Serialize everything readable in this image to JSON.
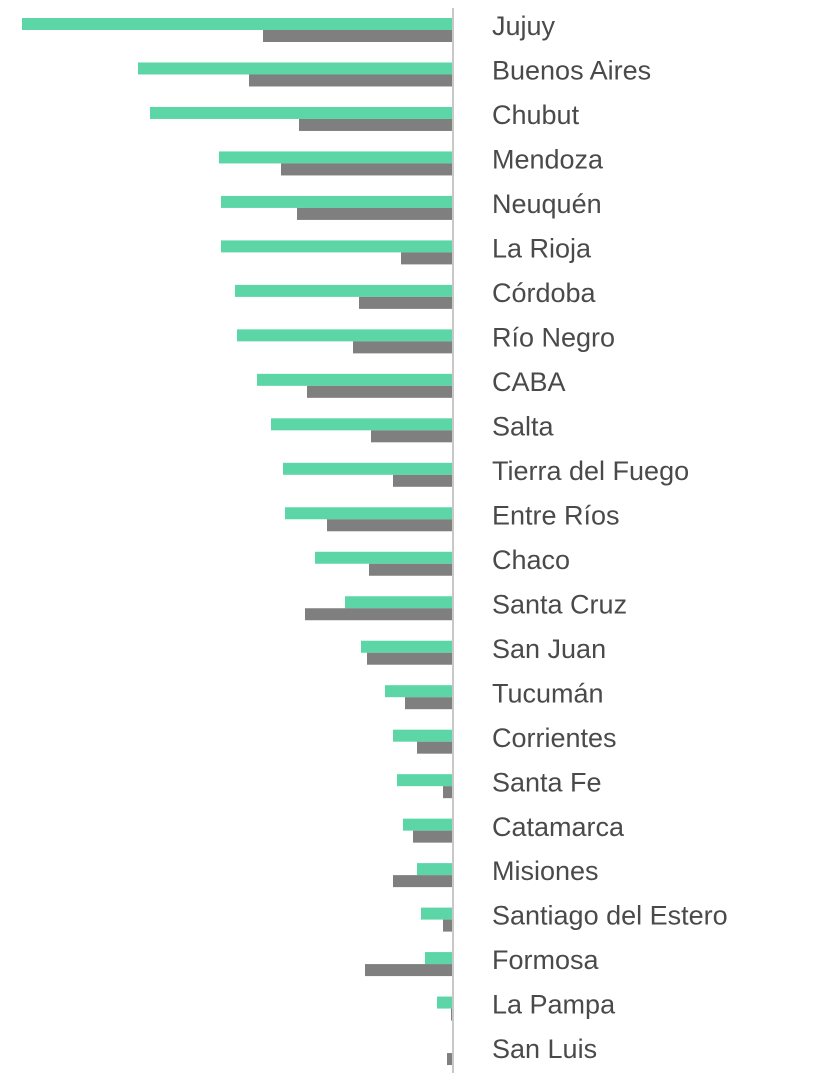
{
  "chart_data": {
    "type": "bar",
    "orientation": "horizontal",
    "categories": [
      "Jujuy",
      "Buenos Aires",
      "Chubut",
      "Mendoza",
      "Neuquén",
      "La Rioja",
      "Córdoba",
      "Río Negro",
      "CABA",
      "Salta",
      "Tierra del Fuego",
      "Entre Ríos",
      "Chaco",
      "Santa Cruz",
      "San Juan",
      "Tucumán",
      "Corrientes",
      "Santa Fe",
      "Catamarca",
      "Misiones",
      "Santiago del Estero",
      "Formosa",
      "La Pampa",
      "San Luis"
    ],
    "series": [
      {
        "color": "#5cd6a6",
        "values": [
          431,
          315,
          303,
          234,
          232,
          232,
          218,
          216,
          196,
          182,
          170,
          168,
          138,
          108,
          92,
          68,
          60,
          56,
          50,
          36,
          32,
          28,
          16,
          0
        ]
      },
      {
        "color": "#7f7f7f",
        "values": [
          190,
          204,
          154,
          172,
          156,
          52,
          94,
          100,
          146,
          82,
          60,
          126,
          84,
          148,
          86,
          48,
          36,
          10,
          40,
          60,
          10,
          88,
          2,
          6
        ]
      }
    ],
    "xlim": [
      0,
      431
    ]
  }
}
